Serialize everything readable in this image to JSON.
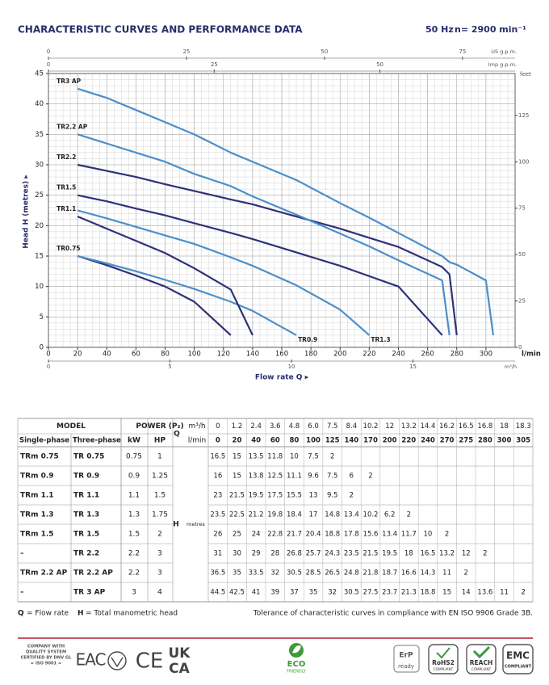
{
  "header": {
    "title": "CHARACTERISTIC CURVES AND PERFORMANCE DATA",
    "frequency": "50 Hz",
    "speed": "n= 2900 min⁻¹"
  },
  "chart_data": {
    "type": "line",
    "xlabel": "Flow rate Q ▸",
    "ylabel": "Head H (metres) ▸",
    "xunit": "l/min",
    "x": [
      20,
      40,
      60,
      80,
      100,
      125,
      140,
      170,
      200,
      220,
      240,
      270,
      275,
      280,
      300,
      305
    ],
    "xlim": [
      0,
      320
    ],
    "xticks": [
      0,
      20,
      40,
      60,
      80,
      100,
      120,
      140,
      160,
      180,
      200,
      220,
      240,
      260,
      280,
      300
    ],
    "ylim": [
      0,
      45
    ],
    "yticks": [
      0,
      5,
      10,
      15,
      20,
      25,
      30,
      35,
      40,
      45
    ],
    "y2label": "feet",
    "y2lim": [
      0,
      147.6
    ],
    "y2ticks": [
      0,
      25,
      50,
      75,
      100,
      125
    ],
    "x2label": "US g.p.m.",
    "x2lim": [
      0,
      84.53
    ],
    "x2ticks": [
      0,
      25,
      50,
      75
    ],
    "x3label": "Imp g.p.m.",
    "x3lim": [
      0,
      70.39
    ],
    "x3ticks": [
      0,
      25,
      50
    ],
    "x4label": "m³/h",
    "x4lim": [
      0,
      19.2
    ],
    "x4ticks": [
      0,
      5,
      10,
      15
    ],
    "grid": true,
    "series": [
      {
        "name": "TR0.75",
        "color": "#2e3178",
        "values": [
          15,
          13.5,
          11.8,
          10,
          7.5,
          2,
          null,
          null,
          null,
          null,
          null,
          null,
          null,
          null,
          null,
          null
        ]
      },
      {
        "name": "TR0.9",
        "color": "#4b8fca",
        "values": [
          15,
          13.8,
          12.5,
          11.1,
          9.6,
          7.5,
          6,
          2,
          null,
          null,
          null,
          null,
          null,
          null,
          null,
          null
        ]
      },
      {
        "name": "TR1.1",
        "color": "#2e3178",
        "values": [
          21.5,
          19.5,
          17.5,
          15.5,
          13,
          9.5,
          2,
          null,
          null,
          null,
          null,
          null,
          null,
          null,
          null,
          null
        ]
      },
      {
        "name": "TR1.3",
        "color": "#4b8fca",
        "values": [
          22.5,
          21.2,
          19.8,
          18.4,
          17,
          14.8,
          13.4,
          10.2,
          6.2,
          2,
          null,
          null,
          null,
          null,
          null,
          null
        ]
      },
      {
        "name": "TR1.5",
        "color": "#2e3178",
        "values": [
          25,
          24,
          22.8,
          21.7,
          20.4,
          18.8,
          17.8,
          15.6,
          13.4,
          11.7,
          10,
          2,
          null,
          null,
          null,
          null
        ]
      },
      {
        "name": "TR2.2",
        "color": "#2e3178",
        "values": [
          30,
          29,
          28,
          26.8,
          25.7,
          24.3,
          23.5,
          21.5,
          19.5,
          18,
          16.5,
          13.2,
          12,
          2,
          null,
          null
        ]
      },
      {
        "name": "TR2.2 AP",
        "color": "#4b8fca",
        "values": [
          35,
          33.5,
          32,
          30.5,
          28.5,
          26.5,
          24.8,
          21.8,
          18.7,
          16.6,
          14.3,
          11,
          2,
          null,
          null,
          null
        ]
      },
      {
        "name": "TR3 AP",
        "color": "#4b8fca",
        "values": [
          42.5,
          41,
          39,
          37,
          35,
          32,
          30.5,
          27.5,
          23.7,
          21.3,
          18.8,
          15,
          14,
          13.6,
          11,
          2
        ]
      }
    ]
  },
  "table": {
    "header": {
      "model": "MODEL",
      "power": "POWER (P₂)",
      "q": "Q",
      "unit_m3h": "m³/h",
      "unit_lmin": "l/min",
      "single_phase": "Single-phase",
      "three_phase": "Three-phase",
      "kw": "kW",
      "hp": "HP",
      "h": "H",
      "h_unit": "metres"
    },
    "flow_m3h": [
      "0",
      "1.2",
      "2.4",
      "3.6",
      "4.8",
      "6.0",
      "7.5",
      "8.4",
      "10.2",
      "12",
      "13.2",
      "14.4",
      "16.2",
      "16.5",
      "16.8",
      "18",
      "18.3"
    ],
    "flow_lmin": [
      "0",
      "20",
      "40",
      "60",
      "80",
      "100",
      "125",
      "140",
      "170",
      "200",
      "220",
      "240",
      "270",
      "275",
      "280",
      "300",
      "305"
    ],
    "rows": [
      {
        "single": "TRm 0.75",
        "three": "TR 0.75",
        "kw": "0.75",
        "hp": "1",
        "head": [
          "16.5",
          "15",
          "13.5",
          "11.8",
          "10",
          "7.5",
          "2"
        ]
      },
      {
        "single": "TRm 0.9",
        "three": "TR 0.9",
        "kw": "0.9",
        "hp": "1.25",
        "head": [
          "16",
          "15",
          "13.8",
          "12.5",
          "11.1",
          "9.6",
          "7.5",
          "6",
          "2"
        ]
      },
      {
        "single": "TRm 1.1",
        "three": "TR 1.1",
        "kw": "1.1",
        "hp": "1.5",
        "head": [
          "23",
          "21.5",
          "19.5",
          "17.5",
          "15.5",
          "13",
          "9.5",
          "2"
        ]
      },
      {
        "single": "TRm 1.3",
        "three": "TR 1.3",
        "kw": "1.3",
        "hp": "1.75",
        "head": [
          "23.5",
          "22.5",
          "21.2",
          "19.8",
          "18.4",
          "17",
          "14.8",
          "13.4",
          "10.2",
          "6.2",
          "2"
        ]
      },
      {
        "single": "TRm 1.5",
        "three": "TR 1.5",
        "kw": "1.5",
        "hp": "2",
        "head": [
          "26",
          "25",
          "24",
          "22.8",
          "21.7",
          "20.4",
          "18.8",
          "17.8",
          "15.6",
          "13.4",
          "11.7",
          "10",
          "2"
        ]
      },
      {
        "single": "–",
        "three": "TR 2.2",
        "kw": "2.2",
        "hp": "3",
        "head": [
          "31",
          "30",
          "29",
          "28",
          "26.8",
          "25.7",
          "24.3",
          "23.5",
          "21.5",
          "19.5",
          "18",
          "16.5",
          "13.2",
          "12",
          "2"
        ]
      },
      {
        "single": "TRm 2.2 AP",
        "three": "TR 2.2 AP",
        "kw": "2.2",
        "hp": "3",
        "head": [
          "36.5",
          "35",
          "33.5",
          "32",
          "30.5",
          "28.5",
          "26.5",
          "24.8",
          "21.8",
          "18.7",
          "16.6",
          "14.3",
          "11",
          "2"
        ]
      },
      {
        "single": "–",
        "three": "TR 3 AP",
        "kw": "3",
        "hp": "4",
        "head": [
          "44.5",
          "42.5",
          "41",
          "39",
          "37",
          "35",
          "32",
          "30.5",
          "27.5",
          "23.7",
          "21.3",
          "18.8",
          "15",
          "14",
          "13.6",
          "11",
          "2"
        ]
      }
    ]
  },
  "notes": {
    "q": "Q",
    "q_text": "= Flow rate",
    "h": "H",
    "h_text": "= Total manometric head",
    "tolerance": "Tolerance of characteristic curves in compliance with EN ISO 9906 Grade 3B."
  },
  "certifications": {
    "dnv": [
      "COMPANY WITH",
      "QUALITY SYSTEM",
      "CERTIFIED BY DNV GL",
      "= ISO 9001 ="
    ],
    "eac": "EAC",
    "ce": "CE",
    "ukca": [
      "UK",
      "CA"
    ],
    "eco": [
      "ECO",
      "FRIENDLY"
    ],
    "erp": [
      "ErP",
      "ready"
    ],
    "rohs": [
      "RoHS2",
      "COMPLIANT"
    ],
    "reach": [
      "REACH",
      "COMPLIANT"
    ],
    "emc": [
      "EMC",
      "COMPLIANT"
    ]
  }
}
